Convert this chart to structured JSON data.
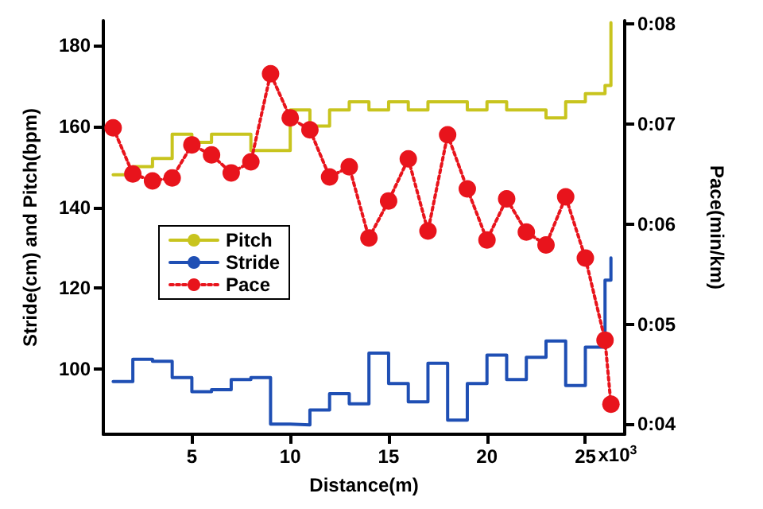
{
  "chart_data": {
    "type": "step",
    "xlabel": "Distance(m)",
    "ylabel": "Stride(cm) and Pitch(bpm)",
    "y2label": "Pace(min/km)",
    "x": [
      1,
      2,
      3,
      4,
      5,
      6,
      7,
      8,
      9,
      10,
      11,
      12,
      13,
      14,
      15,
      16,
      17,
      18,
      19,
      20,
      21,
      22,
      23,
      24,
      25,
      26,
      26.3
    ],
    "annotations": [
      "x10$^{3}$"
    ],
    "series": [
      {
        "name": "Pitch",
        "color": "#c8c41e",
        "marker": "none",
        "values": [
          148,
          150,
          152,
          158,
          156,
          158,
          158,
          154,
          154,
          164,
          160,
          164,
          166,
          164,
          166,
          164,
          166,
          166,
          164,
          166,
          164,
          164,
          162,
          166,
          168,
          170,
          185.5
        ]
      },
      {
        "name": "Stride",
        "color": "#1f4fb4",
        "marker": "none",
        "values": [
          97,
          102.5,
          102,
          98,
          94.5,
          95,
          97.5,
          98,
          86.5,
          86.3,
          90,
          94,
          91.5,
          104,
          96.5,
          92,
          101.5,
          87.5,
          96.5,
          103.5,
          97.5,
          103,
          107,
          96,
          105.5,
          122,
          127.5
        ]
      },
      {
        "name": "Pace",
        "type": "line",
        "axis": "y2",
        "color": "#e8141c",
        "marker": "circle",
        "line_style": "dotted",
        "values": [
          6.96,
          6.5,
          6.43,
          6.46,
          6.79,
          6.69,
          6.51,
          6.62,
          7.5,
          7.06,
          6.94,
          6.47,
          6.57,
          5.86,
          6.23,
          6.65,
          5.93,
          6.89,
          6.35,
          5.84,
          6.25,
          5.92,
          5.79,
          6.27,
          5.66,
          4.84,
          4.2
        ]
      }
    ],
    "xlim": [
      0.5,
      27
    ],
    "xticks": [
      5,
      10,
      15,
      20,
      25
    ],
    "ylim": [
      84,
      186
    ],
    "yticks": [
      100,
      120,
      140,
      160,
      180
    ],
    "y2lim": [
      3.9,
      8.03
    ],
    "y2ticks": [
      {
        "value": 4,
        "label": "0:04"
      },
      {
        "value": 5,
        "label": "0:05"
      },
      {
        "value": 6,
        "label": "0:06"
      },
      {
        "value": 7,
        "label": "0:07"
      },
      {
        "value": 8,
        "label": "0:08"
      }
    ],
    "grid": false,
    "legend": "left"
  }
}
